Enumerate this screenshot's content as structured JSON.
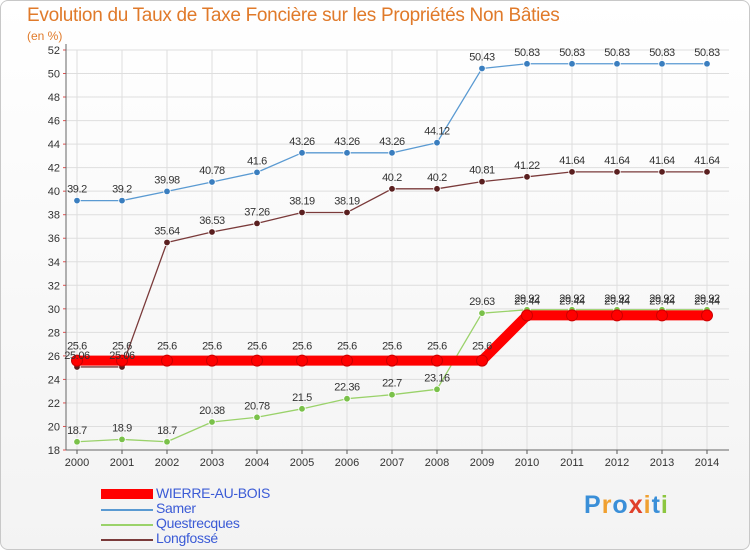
{
  "title": "Evolution du Taux de Taxe Foncière sur les Propriétés Non Bâties",
  "unit_label": "(en %)",
  "brand": {
    "letters": [
      "P",
      "r",
      "o",
      "x",
      "i",
      "t",
      "i"
    ],
    "colors": [
      "#3a8fd8",
      "#f0a030",
      "#3a8fd8",
      "#e0402a",
      "#f0a030",
      "#3a8fd8",
      "#8cc63f"
    ]
  },
  "chart_data": {
    "type": "line",
    "title": "Evolution du Taux de Taxe Foncière sur les Propriétés Non Bâties",
    "ylabel": "(en %)",
    "xlabel": "",
    "ylim": [
      18,
      52
    ],
    "yticks": [
      18,
      20,
      22,
      24,
      26,
      28,
      30,
      32,
      34,
      36,
      38,
      40,
      42,
      44,
      46,
      48,
      50,
      52
    ],
    "x": [
      "2000",
      "2001",
      "2002",
      "2003",
      "2004",
      "2005",
      "2006",
      "2007",
      "2008",
      "2009",
      "2010",
      "2011",
      "2012",
      "2013",
      "2014"
    ],
    "series": [
      {
        "name": "Samer",
        "color": "#5a9ad2",
        "marker": "#3a7ebf",
        "width": 1.3,
        "values": [
          39.2,
          39.2,
          39.98,
          40.78,
          41.6,
          43.26,
          43.26,
          43.26,
          44.12,
          50.43,
          50.83,
          50.83,
          50.83,
          50.83,
          50.83
        ],
        "labels": [
          "39.2",
          "39.2",
          "39.98",
          "40.78",
          "41.6",
          "43.26",
          "43.26",
          "43.26",
          "44.12",
          "50.43",
          "50.83",
          "50.83",
          "50.83",
          "50.83",
          "50.83"
        ]
      },
      {
        "name": "Longfossé",
        "color": "#7a3a3a",
        "marker": "#5a1f1f",
        "width": 1.3,
        "values": [
          25.06,
          25.06,
          35.64,
          36.53,
          37.26,
          38.19,
          38.19,
          40.2,
          40.2,
          40.81,
          41.22,
          41.64,
          41.64,
          41.64,
          41.64
        ],
        "labels": [
          "25.06",
          "25.06",
          "35.64",
          "36.53",
          "37.26",
          "38.19",
          "38.19",
          "40.2",
          "40.2",
          "40.81",
          "41.22",
          "41.64",
          "41.64",
          "41.64",
          "41.64"
        ]
      },
      {
        "name": "Questrecques",
        "color": "#9ad26a",
        "marker": "#7ac14a",
        "width": 1.3,
        "values": [
          18.7,
          18.9,
          18.7,
          20.38,
          20.78,
          21.5,
          22.36,
          22.7,
          23.16,
          29.63,
          29.92,
          29.92,
          29.92,
          29.92,
          29.92
        ],
        "labels": [
          "18.7",
          "18.9",
          "18.7",
          "20.38",
          "20.78",
          "21.5",
          "22.36",
          "22.7",
          "23.16",
          "29.63",
          "29.92",
          "29.92",
          "29.92",
          "29.92",
          "29.92"
        ]
      },
      {
        "name": "WIERRE-AU-BOIS",
        "color": "#ff0000",
        "marker": "#ff0000",
        "width": 10,
        "values": [
          25.6,
          25.6,
          25.6,
          25.6,
          25.6,
          25.6,
          25.6,
          25.6,
          25.6,
          25.6,
          29.44,
          29.44,
          29.44,
          29.44,
          29.44
        ],
        "labels": [
          "25.6",
          "25.6",
          "25.6",
          "25.6",
          "25.6",
          "25.6",
          "25.6",
          "25.6",
          "25.6",
          "25.6",
          "29.44",
          "29.44",
          "29.44",
          "29.44",
          "29.44"
        ]
      }
    ],
    "legend": [
      {
        "name": "WIERRE-AU-BOIS",
        "color": "#ff0000",
        "text_color": "#3b5bd6"
      },
      {
        "name": "Samer",
        "color": "#5a9ad2",
        "text_color": "#3b5bd6"
      },
      {
        "name": "Questrecques",
        "color": "#9ad26a",
        "text_color": "#3b5bd6"
      },
      {
        "name": "Longfossé",
        "color": "#7a3a3a",
        "text_color": "#3b5bd6"
      }
    ]
  }
}
